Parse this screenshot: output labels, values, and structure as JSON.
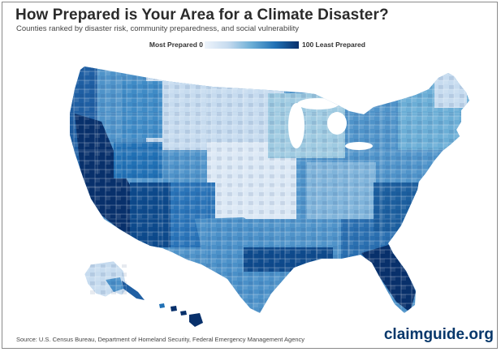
{
  "header": {
    "title": "How Prepared is Your Area for a Climate Disaster?",
    "subtitle": "Counties ranked by disaster risk, community preparedness, and social vulnerability"
  },
  "legend": {
    "min_label": "Most Prepared 0",
    "max_label": "100 Least Prepared",
    "scale_min": 0,
    "scale_max": 100,
    "colors": [
      "#eef4fb",
      "#c6dbef",
      "#6baed6",
      "#2171b5",
      "#08306b"
    ]
  },
  "map": {
    "regions": [
      "contiguous-us",
      "alaska",
      "hawaii"
    ]
  },
  "footer": {
    "source": "Source: U.S. Census Bureau, Department of Homeland Security, Federal Emergency Management Agency",
    "brand": "claimguide.org"
  }
}
